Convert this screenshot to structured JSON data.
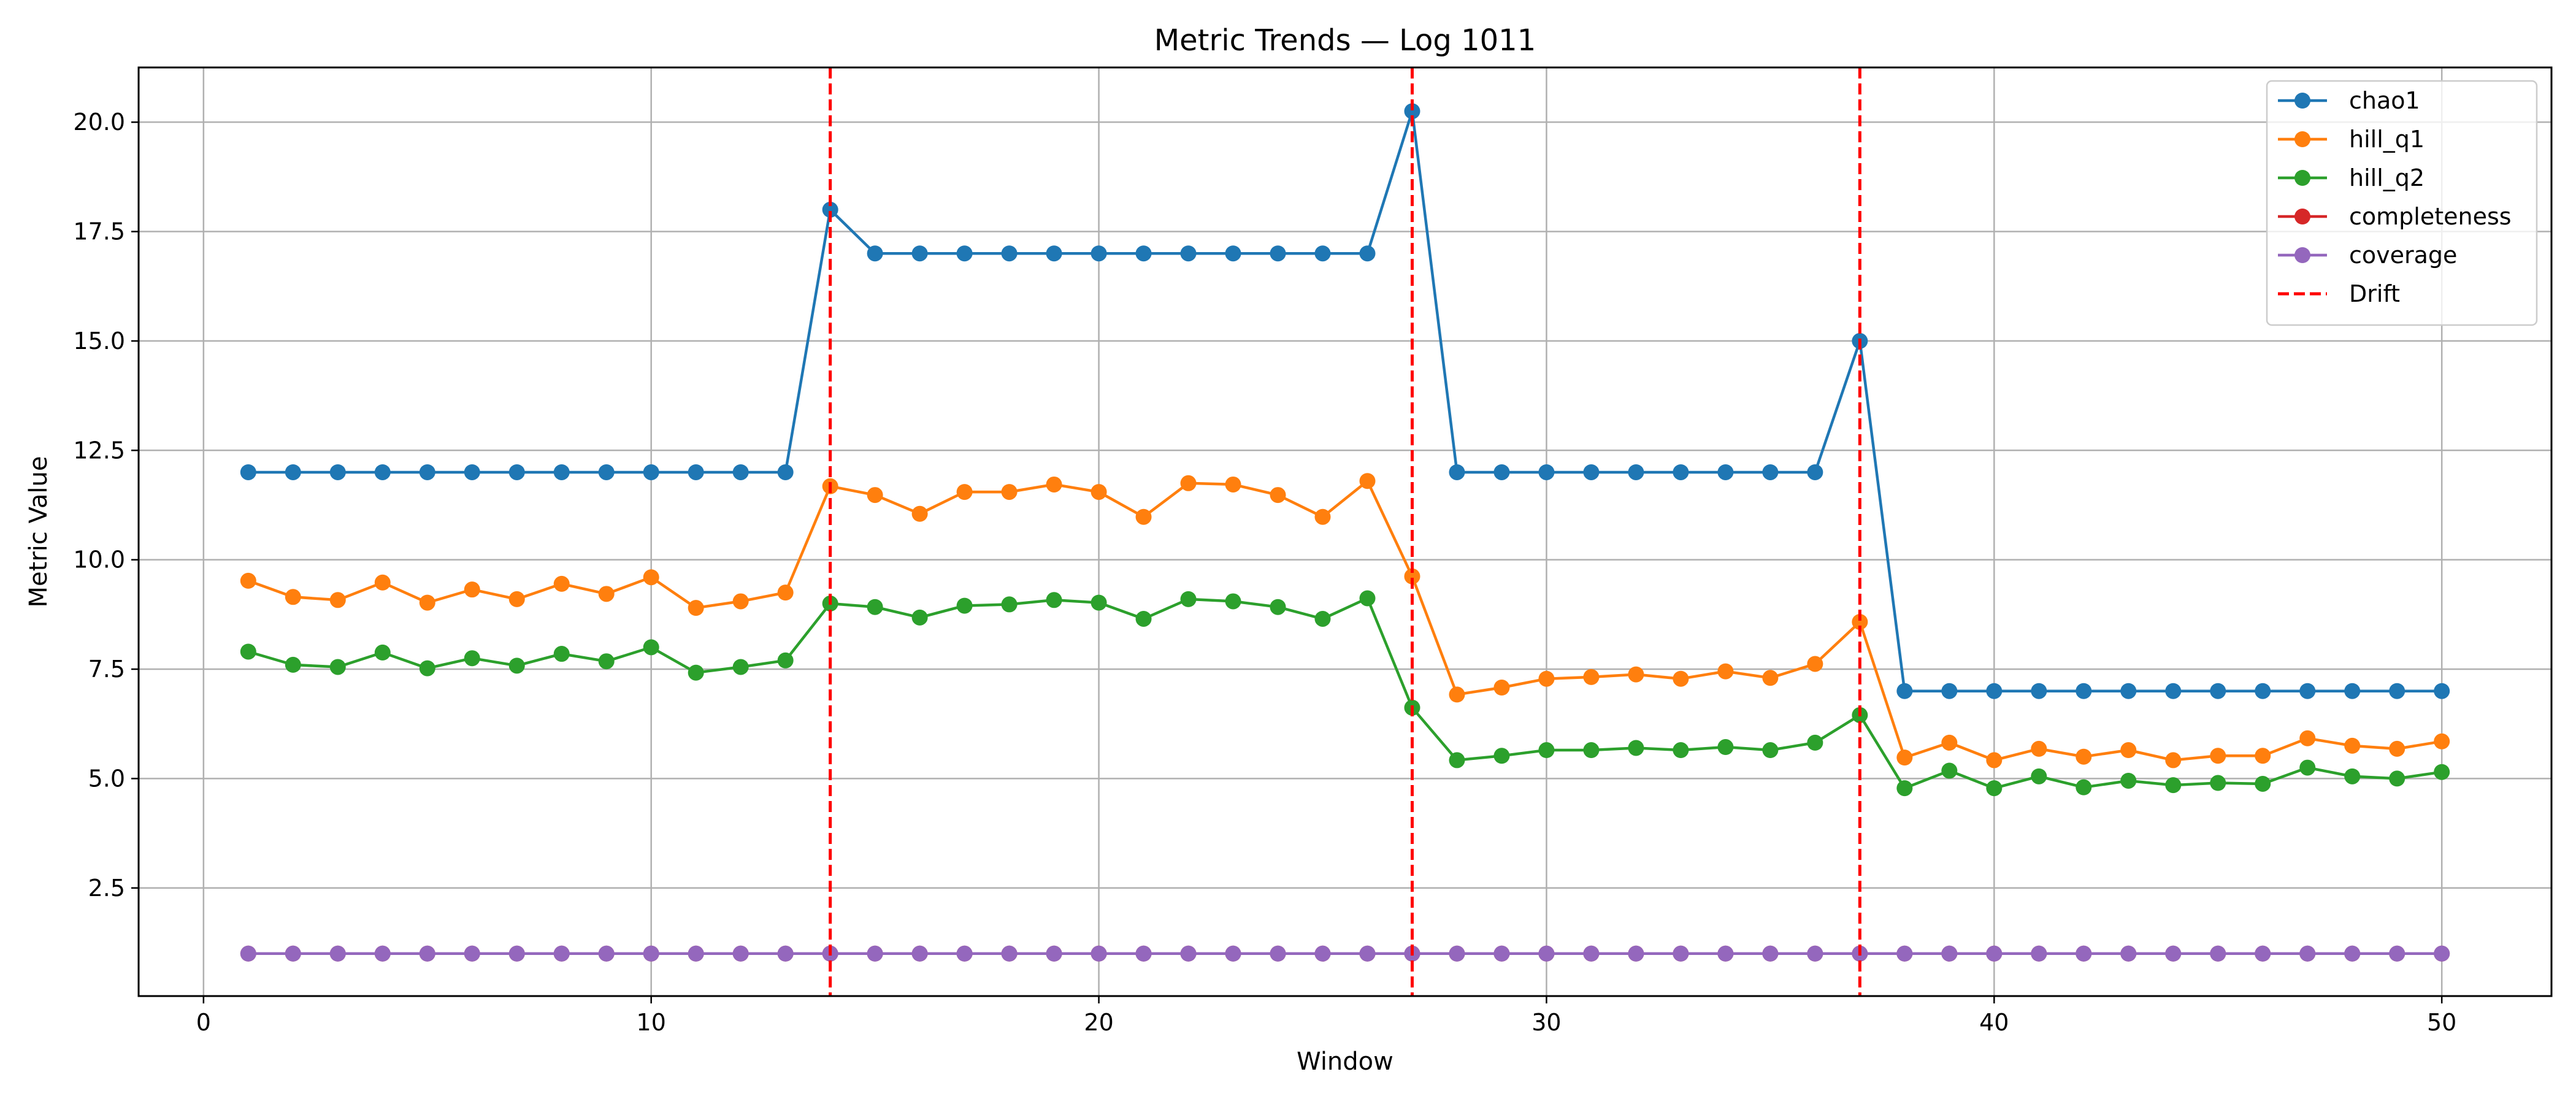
{
  "chart_data": {
    "type": "line",
    "title": "Metric Trends — Log 1011",
    "xlabel": "Window",
    "ylabel": "Metric Value",
    "xlim": [
      -1.45,
      52.45
    ],
    "ylim": [
      0.03,
      21.25
    ],
    "xticks": [
      0,
      10,
      20,
      30,
      40,
      50
    ],
    "yticks": [
      2.5,
      5.0,
      7.5,
      10.0,
      12.5,
      15.0,
      17.5,
      20.0
    ],
    "grid": true,
    "legend_position": "top-right",
    "x": [
      1,
      2,
      3,
      4,
      5,
      6,
      7,
      8,
      9,
      10,
      11,
      12,
      13,
      14,
      15,
      16,
      17,
      18,
      19,
      20,
      21,
      22,
      23,
      24,
      25,
      26,
      27,
      28,
      29,
      30,
      31,
      32,
      33,
      34,
      35,
      36,
      37,
      38,
      39,
      40,
      41,
      42,
      43,
      44,
      45,
      46,
      47,
      48,
      49,
      50
    ],
    "series": [
      {
        "name": "chao1",
        "color": "#1f77b4",
        "values": [
          12,
          12,
          12,
          12,
          12,
          12,
          12,
          12,
          12,
          12,
          12,
          12,
          12,
          18,
          17,
          17,
          17,
          17,
          17,
          17,
          17,
          17,
          17,
          17,
          17,
          17,
          20.25,
          12,
          12,
          12,
          12,
          12,
          12,
          12,
          12,
          12,
          15,
          7,
          7,
          7,
          7,
          7,
          7,
          7,
          7,
          7,
          7,
          7,
          7,
          7
        ]
      },
      {
        "name": "hill_q1",
        "color": "#ff7f0e",
        "values": [
          9.52,
          9.15,
          9.08,
          9.48,
          9.02,
          9.32,
          9.1,
          9.45,
          9.22,
          9.6,
          8.9,
          9.05,
          9.25,
          11.68,
          11.48,
          11.05,
          11.55,
          11.55,
          11.72,
          11.55,
          10.98,
          11.75,
          11.72,
          11.48,
          10.98,
          11.8,
          9.62,
          6.92,
          7.08,
          7.28,
          7.32,
          7.38,
          7.28,
          7.45,
          7.3,
          7.62,
          8.58,
          5.48,
          5.82,
          5.42,
          5.68,
          5.5,
          5.65,
          5.42,
          5.52,
          5.52,
          5.92,
          5.75,
          5.68,
          5.85
        ]
      },
      {
        "name": "hill_q2",
        "color": "#2ca02c",
        "values": [
          7.9,
          7.6,
          7.55,
          7.88,
          7.52,
          7.75,
          7.58,
          7.85,
          7.68,
          8.0,
          7.42,
          7.55,
          7.7,
          9.0,
          8.92,
          8.68,
          8.95,
          8.98,
          9.08,
          9.02,
          8.65,
          9.1,
          9.05,
          8.92,
          8.65,
          9.12,
          6.62,
          5.42,
          5.52,
          5.65,
          5.65,
          5.7,
          5.65,
          5.72,
          5.65,
          5.82,
          6.45,
          4.78,
          5.18,
          4.78,
          5.05,
          4.8,
          4.95,
          4.85,
          4.9,
          4.88,
          5.25,
          5.05,
          5.0,
          5.15
        ]
      },
      {
        "name": "completeness",
        "color": "#d62728",
        "values": [
          1,
          1,
          1,
          1,
          1,
          1,
          1,
          1,
          1,
          1,
          1,
          1,
          1,
          1,
          1,
          1,
          1,
          1,
          1,
          1,
          1,
          1,
          1,
          1,
          1,
          1,
          1,
          1,
          1,
          1,
          1,
          1,
          1,
          1,
          1,
          1,
          1,
          1,
          1,
          1,
          1,
          1,
          1,
          1,
          1,
          1,
          1,
          1,
          1,
          1
        ]
      },
      {
        "name": "coverage",
        "color": "#9467bd",
        "values": [
          1,
          1,
          1,
          1,
          1,
          1,
          1,
          1,
          1,
          1,
          1,
          1,
          1,
          1,
          1,
          1,
          1,
          1,
          1,
          1,
          1,
          1,
          1,
          1,
          1,
          1,
          1,
          1,
          1,
          1,
          1,
          1,
          1,
          1,
          1,
          1,
          1,
          1,
          1,
          1,
          1,
          1,
          1,
          1,
          1,
          1,
          1,
          1,
          1,
          1
        ]
      }
    ],
    "drift": {
      "name": "Drift",
      "color": "#ff0000",
      "x": [
        14,
        27,
        37
      ]
    }
  }
}
